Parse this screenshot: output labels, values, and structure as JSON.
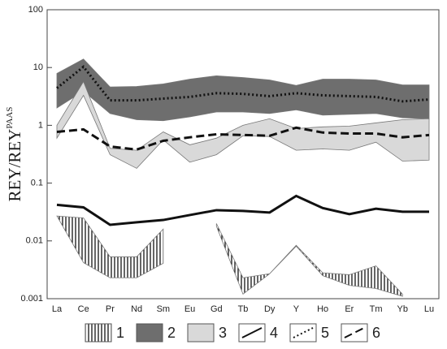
{
  "chart_data": {
    "type": "line",
    "y_log": true,
    "y_label": "REY/REY",
    "y_label_sup": "PAAS",
    "categories": [
      "La",
      "Ce",
      "Pr",
      "Nd",
      "Sm",
      "Eu",
      "Gd",
      "Tb",
      "Dy",
      "Y",
      "Ho",
      "Er",
      "Tm",
      "Yb",
      "Lu"
    ],
    "ylim": [
      0.001,
      100
    ],
    "yticks": [
      0.001,
      0.01,
      0.1,
      1,
      10,
      100
    ],
    "series": [
      {
        "name": "1",
        "kind": "band",
        "style": "hatch",
        "color": "#000000",
        "upper": [
          0.027,
          0.025,
          0.0053,
          0.0053,
          0.016,
          null,
          0.02,
          0.0023,
          0.0027,
          0.0084,
          0.0028,
          0.0026,
          0.0037,
          0.0012,
          null
        ],
        "lower": [
          0.027,
          0.0042,
          0.0023,
          0.0023,
          0.0041,
          null,
          0.018,
          0.0012,
          0.0027,
          0.0081,
          0.0025,
          0.0017,
          0.0015,
          0.0011,
          null
        ]
      },
      {
        "name": "2",
        "kind": "band",
        "style": "solid",
        "color": "#6e6e6e",
        "upper": [
          7.9,
          14,
          4.6,
          4.7,
          5.2,
          6.3,
          7.2,
          6.7,
          6.1,
          4.9,
          6.3,
          6.3,
          6.1,
          5.0,
          5.0
        ],
        "lower": [
          2.0,
          3.9,
          1.6,
          1.25,
          1.2,
          1.4,
          1.7,
          1.7,
          1.6,
          1.85,
          1.5,
          1.55,
          1.6,
          1.35,
          1.3
        ]
      },
      {
        "name": "3",
        "kind": "band",
        "style": "solid",
        "color": "#d9d9d9",
        "upper": [
          1.0,
          5.7,
          0.4,
          0.37,
          0.77,
          0.46,
          0.6,
          1.0,
          1.3,
          0.88,
          0.94,
          0.97,
          1.1,
          1.25,
          1.3
        ],
        "lower": [
          0.6,
          3.3,
          0.31,
          0.18,
          0.56,
          0.23,
          0.31,
          0.66,
          0.64,
          0.37,
          0.39,
          0.37,
          0.51,
          0.24,
          0.25
        ]
      },
      {
        "name": "4",
        "kind": "line",
        "style": "solid",
        "color": "#111111",
        "values": [
          0.042,
          0.038,
          0.019,
          0.021,
          0.023,
          0.028,
          0.034,
          0.033,
          0.031,
          0.06,
          0.037,
          0.029,
          0.036,
          0.032,
          0.032
        ]
      },
      {
        "name": "5",
        "kind": "line",
        "style": "dotted",
        "color": "#111111",
        "values": [
          4.4,
          10.3,
          2.7,
          2.7,
          2.9,
          3.1,
          3.6,
          3.5,
          3.2,
          3.6,
          3.3,
          3.2,
          3.1,
          2.6,
          2.8
        ]
      },
      {
        "name": "6",
        "kind": "line",
        "style": "dashed",
        "color": "#111111",
        "values": [
          0.77,
          0.85,
          0.43,
          0.38,
          0.54,
          0.62,
          0.7,
          0.68,
          0.66,
          0.91,
          0.75,
          0.72,
          0.72,
          0.62,
          0.68
        ]
      }
    ]
  }
}
